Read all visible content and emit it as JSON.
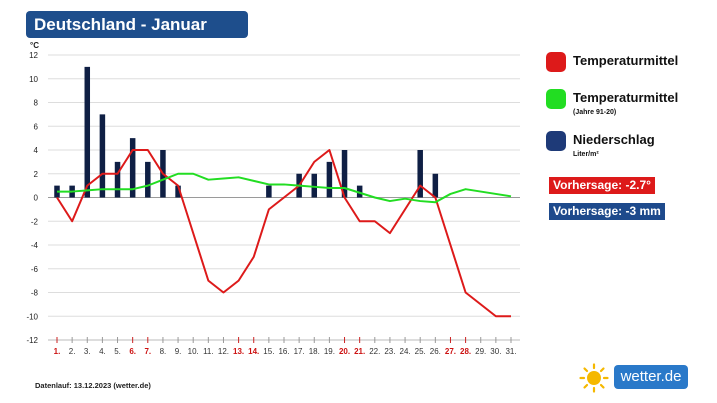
{
  "header": {
    "title": "Deutschland - Januar"
  },
  "legend": {
    "temp": {
      "label": "Temperaturmittel",
      "color": "#dd1a1a"
    },
    "temp_avg": {
      "label": "Temperaturmittel",
      "sub": "(Jahre 91-20)",
      "color": "#22dd22"
    },
    "precip": {
      "label": "Niederschlag",
      "sub": "Liter/m²",
      "color": "#1e3a78"
    }
  },
  "forecast": {
    "temp": {
      "text": "Vorhersage: -2.7°",
      "color": "#dd1a1a"
    },
    "precip": {
      "text": "Vorhersage: -3 mm",
      "color": "#1e4a8c"
    }
  },
  "footer": {
    "text": "Datenlauf: 13.12.2023 (wetter.de)"
  },
  "logo": {
    "text": "wetter.de",
    "icon": "sun-icon"
  },
  "chart_data": {
    "type": "bar+line",
    "y_unit": "°C",
    "ylim": [
      -12,
      12
    ],
    "y_ticks": [
      12,
      10,
      8,
      6,
      4,
      2,
      0,
      -2,
      -4,
      -6,
      -8,
      -10,
      -12
    ],
    "grid": true,
    "categories": [
      "1.",
      "2.",
      "3.",
      "4.",
      "5.",
      "6.",
      "7.",
      "8.",
      "9.",
      "10.",
      "11.",
      "12.",
      "13.",
      "14.",
      "15.",
      "16.",
      "17.",
      "18.",
      "19.",
      "20.",
      "21.",
      "22.",
      "23.",
      "24.",
      "25.",
      "26.",
      "27.",
      "28.",
      "29.",
      "30.",
      "31."
    ],
    "weekend_days": [
      "1.",
      "6.",
      "7.",
      "13.",
      "14.",
      "20.",
      "21.",
      "27.",
      "28."
    ],
    "series": [
      {
        "name": "Temperaturmittel",
        "type": "line",
        "color": "#dd1a1a",
        "values": [
          0,
          -2,
          1,
          2,
          2,
          4,
          4,
          2,
          1,
          -3,
          -7,
          -8,
          -7,
          -5,
          -1,
          0,
          1,
          3,
          4,
          0,
          -2,
          -2,
          -3,
          -1,
          1,
          0,
          -4,
          -8,
          -9,
          -10,
          -10
        ]
      },
      {
        "name": "Temperaturmittel (Jahre 91-20)",
        "type": "line",
        "color": "#22dd22",
        "values": [
          0.5,
          0.5,
          0.6,
          0.7,
          0.7,
          0.7,
          1.0,
          1.5,
          2.0,
          2.0,
          1.5,
          1.6,
          1.7,
          1.4,
          1.1,
          1.1,
          1.0,
          0.9,
          0.8,
          0.8,
          0.4,
          0.0,
          -0.3,
          -0.1,
          -0.3,
          -0.4,
          0.3,
          0.7,
          0.5,
          0.3,
          0.1
        ]
      },
      {
        "name": "Niederschlag",
        "type": "bar",
        "color": "#0f1f44",
        "values": [
          1,
          1,
          11,
          7,
          3,
          5,
          3,
          4,
          1,
          0,
          0,
          0,
          0,
          0,
          1,
          0,
          2,
          2,
          3,
          4,
          1,
          0,
          0,
          0,
          4,
          2,
          0,
          0,
          0,
          0,
          0
        ]
      }
    ]
  }
}
